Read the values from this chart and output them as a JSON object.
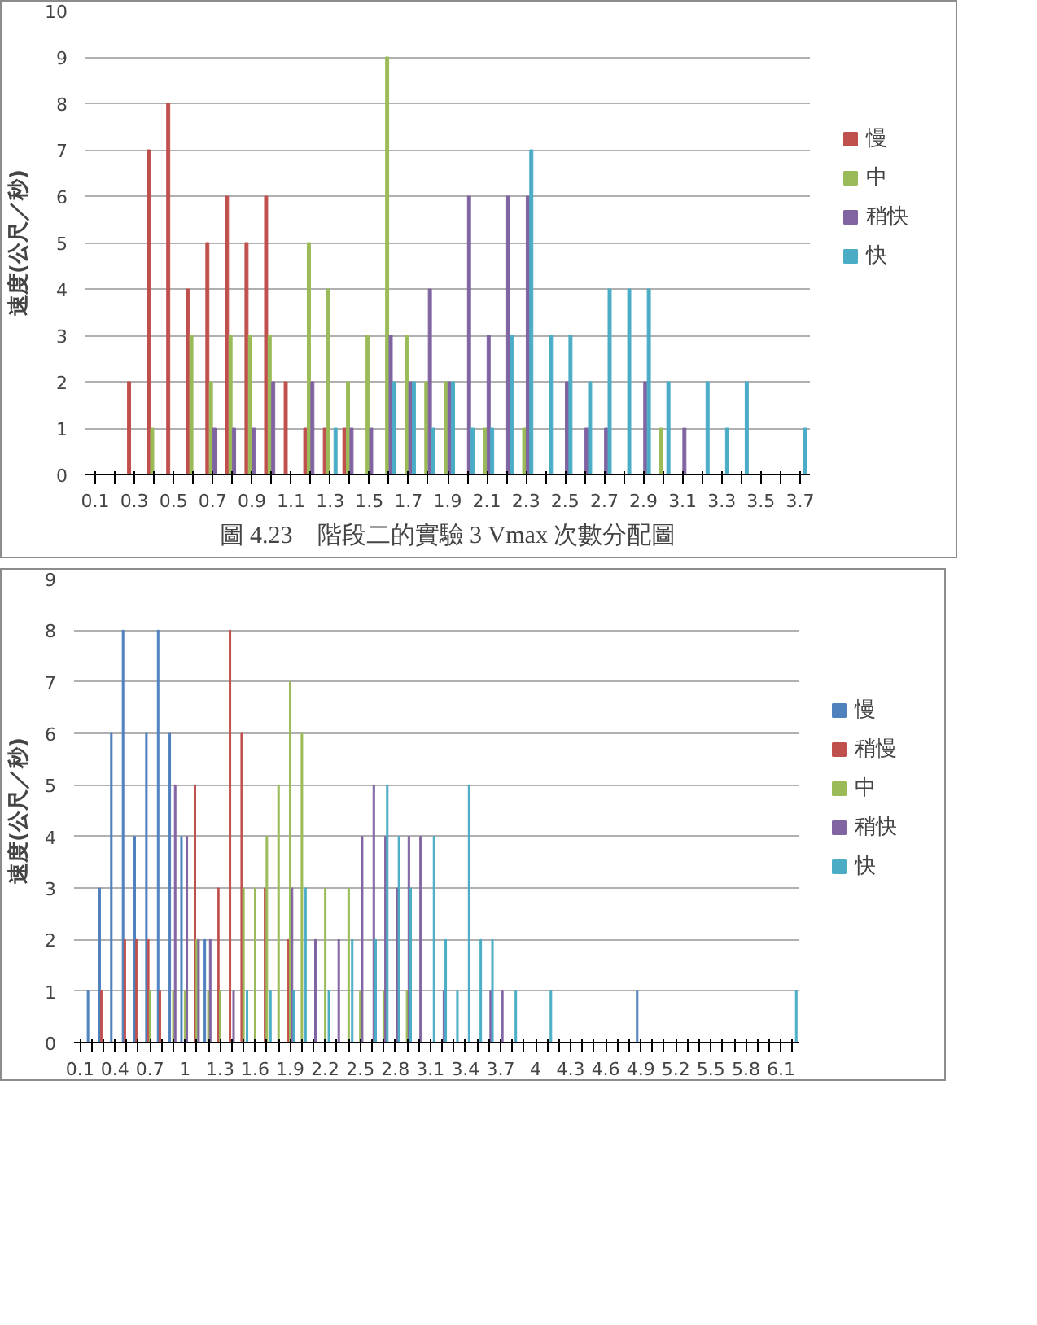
{
  "chart_data": [
    {
      "type": "bar",
      "ylabel": "速度(公尺／秒)",
      "annotations": [
        "圖 4.23　階段二的實驗 3 Vmax 次數分配圖"
      ],
      "categories": [
        "0.1",
        null,
        "0.3",
        null,
        "0.5",
        null,
        "0.7",
        null,
        "0.9",
        null,
        "1.1",
        null,
        "1.3",
        null,
        "1.5",
        null,
        "1.7",
        null,
        "1.9",
        null,
        "2.1",
        null,
        "2.3",
        null,
        "2.5",
        null,
        "2.7",
        null,
        "2.9",
        null,
        "3.1",
        null,
        "3.3",
        null,
        "3.5",
        null,
        "3.7"
      ],
      "series": [
        {
          "name": "慢",
          "color": "#c0504d",
          "values": [
            0,
            0,
            2,
            7,
            8,
            4,
            5,
            6,
            5,
            6,
            2,
            1,
            1,
            1,
            0,
            0,
            0,
            0,
            0,
            0,
            0,
            0,
            0,
            0,
            0,
            0,
            0,
            0,
            0,
            0,
            0,
            0,
            0,
            0,
            0,
            0,
            0
          ]
        },
        {
          "name": "中",
          "color": "#9bbb59",
          "values": [
            0,
            0,
            0,
            1,
            0,
            3,
            2,
            3,
            3,
            3,
            0,
            5,
            4,
            2,
            3,
            9,
            3,
            2,
            2,
            0,
            1,
            0,
            1,
            0,
            0,
            0,
            0,
            0,
            0,
            1,
            0,
            0,
            0,
            0,
            0,
            0,
            0
          ]
        },
        {
          "name": "稍快",
          "color": "#8064a2",
          "values": [
            0,
            0,
            0,
            0,
            0,
            0,
            1,
            1,
            1,
            2,
            0,
            2,
            0,
            1,
            1,
            3,
            2,
            4,
            2,
            6,
            3,
            6,
            6,
            0,
            2,
            1,
            1,
            0,
            2,
            0,
            1,
            0,
            0,
            0,
            0,
            0,
            0
          ]
        },
        {
          "name": "快",
          "color": "#4bacc6",
          "values": [
            0,
            0,
            0,
            0,
            0,
            0,
            0,
            0,
            0,
            0,
            0,
            0,
            1,
            0,
            0,
            2,
            2,
            1,
            2,
            1,
            1,
            3,
            7,
            3,
            3,
            2,
            4,
            4,
            4,
            2,
            0,
            2,
            1,
            2,
            0,
            0,
            1
          ]
        }
      ],
      "ylim": [
        0,
        10
      ],
      "yticks": [
        0,
        1,
        2,
        3,
        4,
        5,
        6,
        7,
        8,
        9,
        10
      ],
      "grid": "y",
      "legend": "right"
    },
    {
      "type": "bar",
      "ylabel": "速度(公尺／秒)",
      "categories": [
        "0.1",
        null,
        null,
        "0.4",
        null,
        null,
        "0.7",
        null,
        null,
        "1",
        null,
        null,
        "1.3",
        null,
        null,
        "1.6",
        null,
        null,
        "1.9",
        null,
        null,
        "2.2",
        null,
        null,
        "2.5",
        null,
        null,
        "2.8",
        null,
        null,
        "3.1",
        null,
        null,
        "3.4",
        null,
        null,
        "3.7",
        null,
        null,
        "4",
        null,
        null,
        "4.3",
        null,
        null,
        "4.6",
        null,
        null,
        "4.9",
        null,
        null,
        "5.2",
        null,
        null,
        "5.5",
        null,
        null,
        "5.8",
        null,
        null,
        "6.1",
        null
      ],
      "series": [
        {
          "name": "慢",
          "color": "#4f81bd",
          "values": [
            0,
            1,
            3,
            6,
            8,
            4,
            6,
            8,
            6,
            4,
            0,
            2,
            0,
            0,
            0,
            0,
            0,
            0,
            0,
            0,
            0,
            0,
            0,
            0,
            0,
            0,
            0,
            0,
            0,
            0,
            0,
            0,
            0,
            0,
            0,
            0,
            0,
            0,
            0,
            0,
            0,
            0,
            0,
            0,
            0,
            0,
            0,
            0,
            1,
            0,
            0,
            0,
            0,
            0,
            0,
            0,
            0,
            0,
            0,
            0,
            0,
            0
          ]
        },
        {
          "name": "稍慢",
          "color": "#c0504d",
          "values": [
            0,
            0,
            1,
            0,
            2,
            2,
            2,
            1,
            0,
            0,
            5,
            0,
            3,
            8,
            6,
            0,
            3,
            0,
            2,
            0,
            0,
            0,
            0,
            0,
            0,
            0,
            0,
            0,
            0,
            0,
            0,
            0,
            0,
            0,
            0,
            0,
            0,
            0,
            0,
            0,
            0,
            0,
            0,
            0,
            0,
            0,
            0,
            0,
            0,
            0,
            0,
            0,
            0,
            0,
            0,
            0,
            0,
            0,
            0,
            0,
            0,
            0
          ]
        },
        {
          "name": "中",
          "color": "#9bbb59",
          "values": [
            0,
            0,
            0,
            0,
            0,
            0,
            1,
            0,
            1,
            1,
            2,
            1,
            1,
            0,
            3,
            3,
            4,
            5,
            7,
            6,
            0,
            3,
            0,
            3,
            1,
            0,
            1,
            0,
            1,
            0,
            0,
            0,
            0,
            0,
            0,
            0,
            0,
            0,
            0,
            0,
            0,
            0,
            0,
            0,
            0,
            0,
            0,
            0,
            0,
            0,
            0,
            0,
            0,
            0,
            0,
            0,
            0,
            0,
            0,
            0,
            0,
            0
          ]
        },
        {
          "name": "稍快",
          "color": "#8064a2",
          "values": [
            0,
            0,
            0,
            0,
            0,
            0,
            0,
            0,
            5,
            4,
            2,
            2,
            0,
            1,
            0,
            0,
            0,
            0,
            3,
            0,
            2,
            0,
            2,
            0,
            4,
            5,
            4,
            3,
            4,
            4,
            0,
            1,
            0,
            0,
            0,
            1,
            1,
            0,
            0,
            0,
            0,
            0,
            0,
            0,
            0,
            0,
            0,
            0,
            0,
            0,
            0,
            0,
            0,
            0,
            0,
            0,
            0,
            0,
            0,
            0,
            0,
            0
          ]
        },
        {
          "name": "快",
          "color": "#4bacc6",
          "values": [
            0,
            0,
            0,
            0,
            0,
            0,
            0,
            0,
            0,
            0,
            0,
            0,
            0,
            0,
            1,
            0,
            1,
            0,
            1,
            3,
            0,
            1,
            0,
            2,
            0,
            2,
            5,
            4,
            3,
            0,
            4,
            2,
            1,
            5,
            2,
            2,
            0,
            1,
            0,
            0,
            1,
            0,
            0,
            0,
            0,
            0,
            0,
            0,
            0,
            0,
            0,
            0,
            0,
            0,
            0,
            0,
            0,
            0,
            0,
            0,
            0,
            1
          ]
        }
      ],
      "ylim": [
        0,
        9
      ],
      "yticks": [
        0,
        1,
        2,
        3,
        4,
        5,
        6,
        7,
        8,
        9
      ],
      "grid": "y",
      "legend": "right"
    }
  ]
}
